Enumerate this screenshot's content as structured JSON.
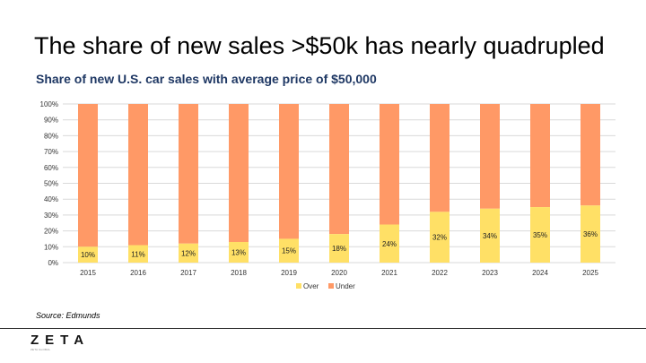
{
  "title": "The share of new sales >$50k has nearly quadrupled",
  "subtitle": "Share of new U.S. car sales with average price of $50,000",
  "source": "Source: Edmunds",
  "logo": {
    "word": "ZETA",
    "tagline": "ZETA GLOBAL"
  },
  "colors": {
    "over": "#ffe066",
    "under": "#ff9966",
    "grid": "#d9d9d9",
    "subtitle": "#1f3864"
  },
  "chart_data": {
    "type": "bar",
    "stacked": true,
    "categories": [
      "2015",
      "2016",
      "2017",
      "2018",
      "2019",
      "2020",
      "2021",
      "2022",
      "2023",
      "2024",
      "2025"
    ],
    "series": [
      {
        "name": "Over",
        "values": [
          10,
          11,
          12,
          13,
          15,
          18,
          24,
          32,
          34,
          35,
          36
        ]
      },
      {
        "name": "Under",
        "values": [
          90,
          89,
          88,
          87,
          85,
          82,
          76,
          68,
          66,
          65,
          64
        ]
      }
    ],
    "data_labels": [
      "10%",
      "11%",
      "12%",
      "13%",
      "15%",
      "18%",
      "24%",
      "32%",
      "34%",
      "35%",
      "36%"
    ],
    "yticks": [
      "0%",
      "10%",
      "20%",
      "30%",
      "40%",
      "50%",
      "60%",
      "70%",
      "80%",
      "90%",
      "100%"
    ],
    "ylim": [
      0,
      100
    ],
    "legend": [
      "Over",
      "Under"
    ],
    "legend_position": "bottom"
  }
}
